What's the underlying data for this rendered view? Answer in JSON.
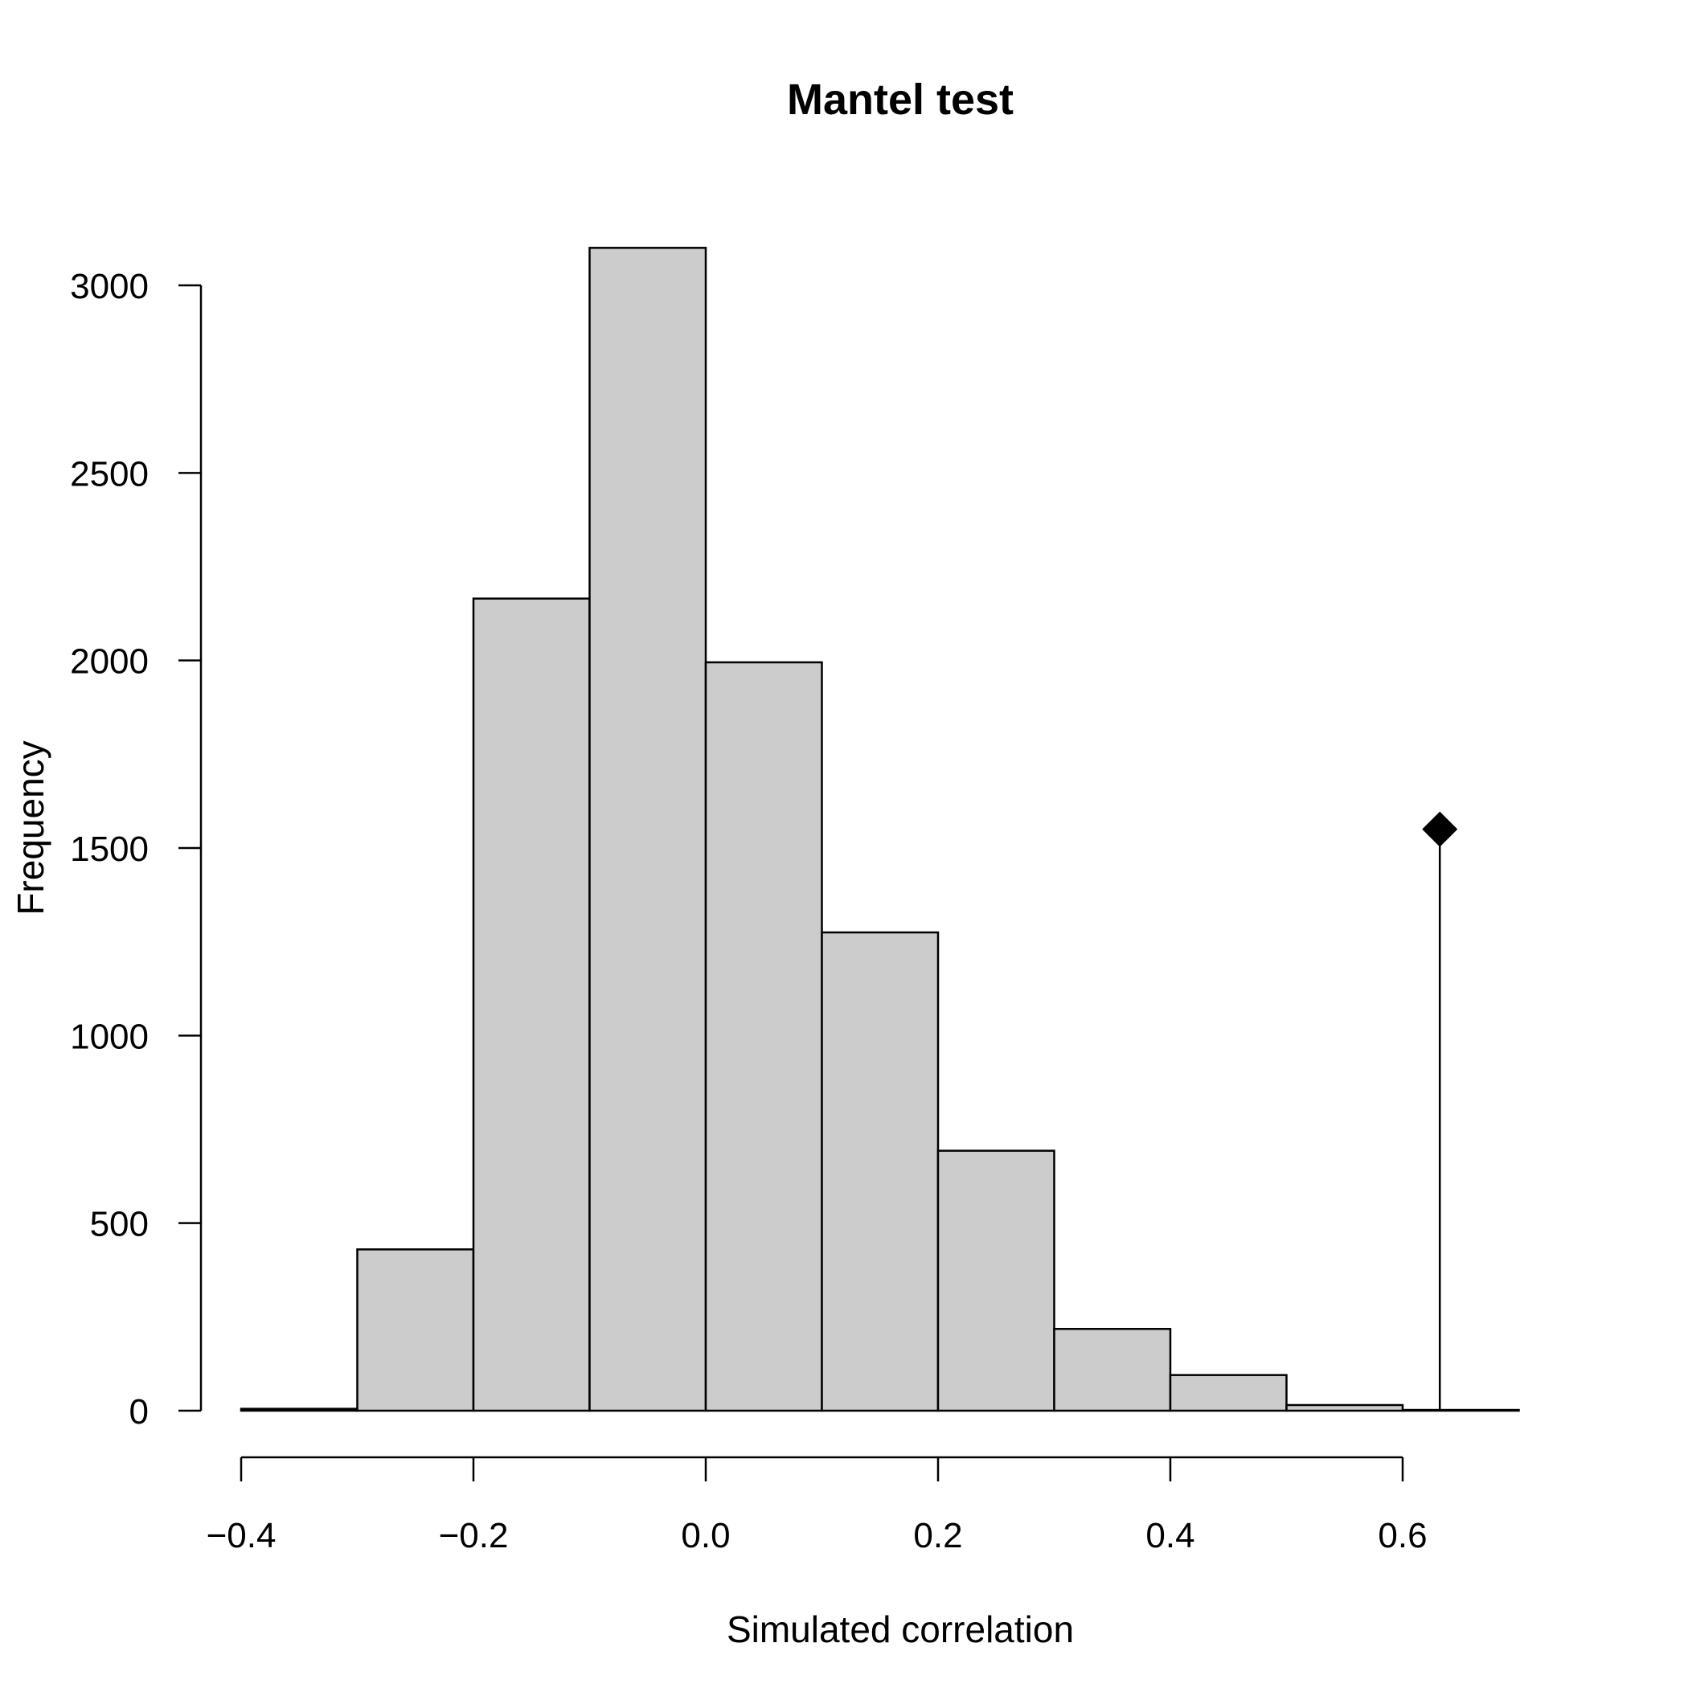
{
  "chart_data": {
    "type": "bar",
    "title": "Mantel test",
    "xlabel": "Simulated correlation",
    "ylabel": "Frequency",
    "xlim": [
      -0.4,
      0.7
    ],
    "ylim": [
      0,
      3100
    ],
    "bins": [
      {
        "x0": -0.4,
        "x1": -0.3,
        "value": 5
      },
      {
        "x0": -0.3,
        "x1": -0.2,
        "value": 430
      },
      {
        "x0": -0.2,
        "x1": -0.1,
        "value": 2165
      },
      {
        "x0": -0.1,
        "x1": 0.0,
        "value": 3100
      },
      {
        "x0": 0.0,
        "x1": 0.1,
        "value": 1995
      },
      {
        "x0": 0.1,
        "x1": 0.2,
        "value": 1275
      },
      {
        "x0": 0.2,
        "x1": 0.3,
        "value": 693
      },
      {
        "x0": 0.3,
        "x1": 0.4,
        "value": 218
      },
      {
        "x0": 0.4,
        "x1": 0.5,
        "value": 95
      },
      {
        "x0": 0.5,
        "x1": 0.6,
        "value": 15
      },
      {
        "x0": 0.6,
        "x1": 0.7,
        "value": 2
      }
    ],
    "x_ticks": [
      {
        "value": -0.4,
        "label": "−0.4"
      },
      {
        "value": -0.2,
        "label": "−0.2"
      },
      {
        "value": 0.0,
        "label": "0.0"
      },
      {
        "value": 0.2,
        "label": "0.2"
      },
      {
        "value": 0.4,
        "label": "0.4"
      },
      {
        "value": 0.6,
        "label": "0.6"
      }
    ],
    "y_ticks": [
      {
        "value": 0,
        "label": "0"
      },
      {
        "value": 500,
        "label": "500"
      },
      {
        "value": 1000,
        "label": "1000"
      },
      {
        "value": 1500,
        "label": "1500"
      },
      {
        "value": 2000,
        "label": "2000"
      },
      {
        "value": 2500,
        "label": "2500"
      },
      {
        "value": 3000,
        "label": "3000"
      }
    ],
    "observed": {
      "x": 0.632,
      "y": 1550,
      "marker": "diamond"
    },
    "grid": false
  }
}
